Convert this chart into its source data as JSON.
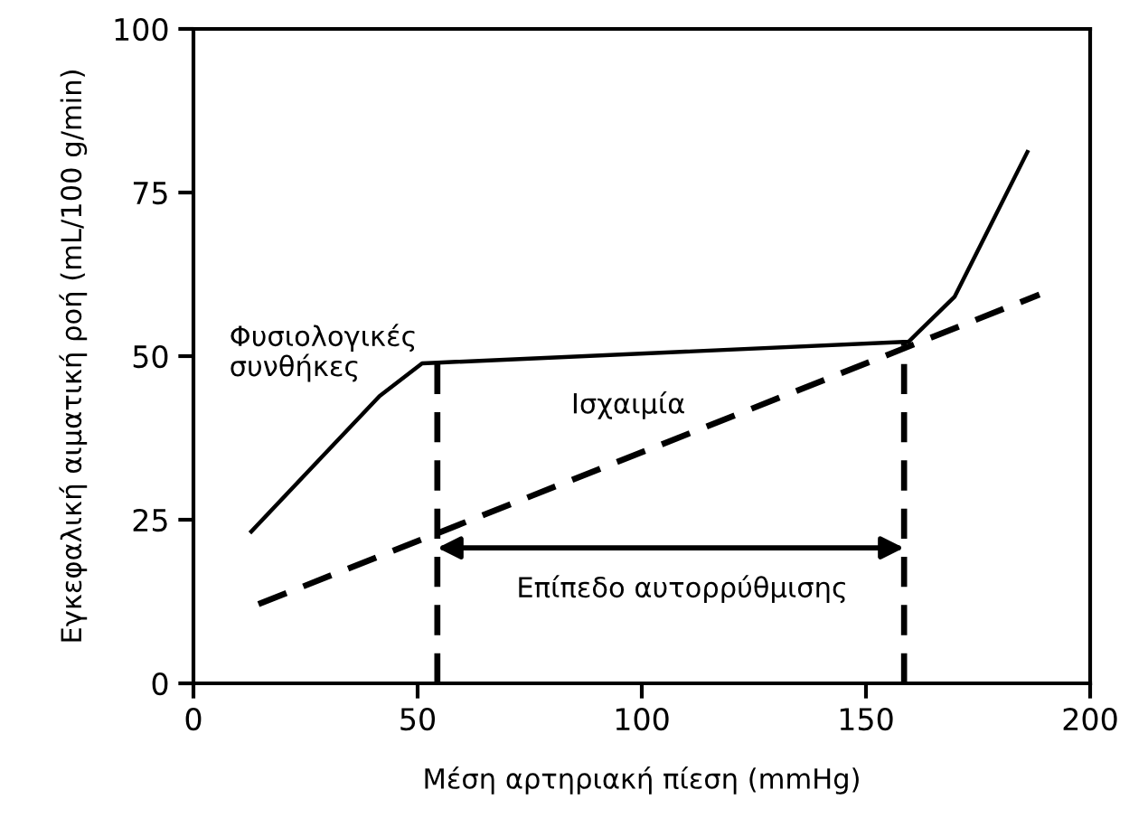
{
  "chart_data": {
    "type": "line",
    "xlabel": "Μέση αρτηριακή πίεση (mmHg)",
    "ylabel": "Εγκεφαλική αιματική ροή (mL/100 g/min)",
    "xlim": [
      0,
      200
    ],
    "ylim": [
      0,
      100
    ],
    "xticks": [
      0,
      50,
      100,
      150,
      200
    ],
    "yticks": [
      0,
      25,
      50,
      75,
      100
    ],
    "grid": false,
    "legend": false,
    "series": [
      {
        "color": "#000000",
        "line_style": "solid",
        "x": [
          12.9,
          41.5,
          51,
          54.4,
          159.5,
          169.8,
          186
        ],
        "values": [
          23.2,
          43.9,
          48.9,
          49,
          52.2,
          59.1,
          81.2
        ]
      },
      {
        "color": "#000000",
        "line_style": "dashed",
        "x": [
          14.5,
          188.7
        ],
        "values": [
          12.1,
          59.4
        ]
      },
      {
        "color": "#000000",
        "line_style": "dashed",
        "x": [
          54.4,
          54.4
        ],
        "values": [
          0,
          49
        ]
      },
      {
        "color": "#000000",
        "line_style": "dashed",
        "x": [
          158.5,
          158.5
        ],
        "values": [
          0,
          52
        ]
      }
    ],
    "annotations": [
      "Φυσιολογικές\nσυνθήκες",
      "Ισχαιμία",
      "Επίπεδο αυτορρύθμισης"
    ]
  }
}
